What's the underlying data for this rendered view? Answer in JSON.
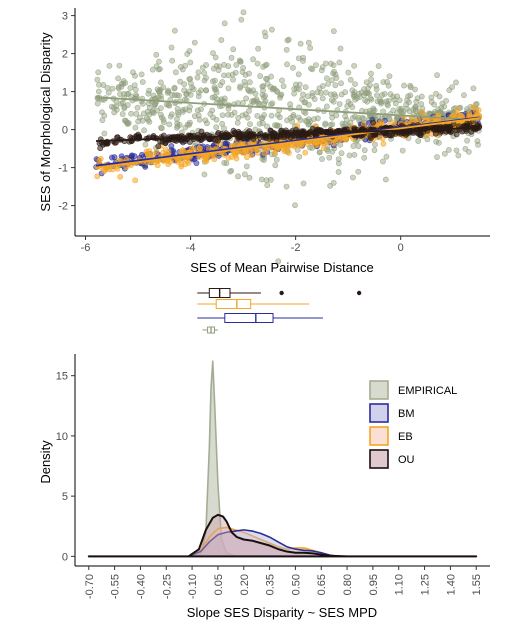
{
  "chart_data": [
    {
      "type": "scatter",
      "xlabel": "SES of Mean Pairwise Distance",
      "ylabel": "SES of Morphological Disparity",
      "xlim": [
        -6.2,
        1.7
      ],
      "ylim": [
        -2.8,
        3.2
      ],
      "xticks": [
        "-6",
        "-4",
        "-2",
        "0"
      ],
      "xtick_values": [
        -6,
        -4,
        -2,
        0
      ],
      "yticks": [
        "-2",
        "-1",
        "0",
        "1",
        "2",
        "3"
      ],
      "ytick_values": [
        -2,
        -1,
        0,
        1,
        2,
        3
      ],
      "grid": false,
      "series": [
        {
          "key": "EMPIRICAL",
          "color": "#8f9e7a",
          "x_range": [
            -5.8,
            1.5
          ],
          "trend": [
            [
              -5.8,
              0.85
            ],
            [
              1.5,
              0.25
            ]
          ],
          "point_spread": 0.65,
          "point_count": 900
        },
        {
          "key": "BM",
          "color": "#2b2e9a",
          "x_range": [
            -5.8,
            1.5
          ],
          "trend": [
            [
              -5.8,
              -0.95
            ],
            [
              1.5,
              0.32
            ]
          ],
          "point_spread": 0.1,
          "point_count": 450
        },
        {
          "key": "EB",
          "color": "#f5a623",
          "x_range": [
            -5.8,
            1.5
          ],
          "trend": [
            [
              -5.8,
              -1.0
            ],
            [
              1.5,
              0.3
            ]
          ],
          "point_spread": 0.13,
          "point_count": 500
        },
        {
          "key": "OU",
          "color": "#2a1a14",
          "x_range": [
            -5.8,
            1.5
          ],
          "trend": [
            [
              -5.8,
              -0.3
            ],
            [
              1.5,
              0.05
            ]
          ],
          "point_spread": 0.06,
          "point_count": 500
        }
      ]
    },
    {
      "type": "boxplot",
      "orientation": "horizontal",
      "note_shares_x_with": "density",
      "boxes": [
        {
          "key": "OU",
          "color": "#2a1a14",
          "whisker_low": -0.07,
          "q1": 0.0,
          "median": 0.06,
          "q3": 0.12,
          "whisker_high": 0.3,
          "outliers": [
            0.42,
            0.87
          ]
        },
        {
          "key": "EB",
          "color": "#f5a623",
          "whisker_low": -0.07,
          "q1": 0.04,
          "median": 0.16,
          "q3": 0.24,
          "whisker_high": 0.58,
          "outliers": []
        },
        {
          "key": "BM",
          "color": "#2b2e9a",
          "whisker_low": -0.07,
          "q1": 0.09,
          "median": 0.27,
          "q3": 0.37,
          "whisker_high": 0.66,
          "outliers": []
        },
        {
          "key": "EMPIRICAL",
          "color": "#8f9e7a",
          "whisker_low": -0.04,
          "q1": -0.01,
          "median": 0.01,
          "q3": 0.03,
          "whisker_high": 0.05,
          "outliers": []
        }
      ]
    },
    {
      "type": "area",
      "xlabel": "Slope SES Disparity ~ SES MPD",
      "ylabel": "Density",
      "xlim": [
        -0.78,
        1.63
      ],
      "ylim": [
        -0.8,
        16.8
      ],
      "xticks": [
        "-0.70",
        "-0.55",
        "-0.40",
        "-0.25",
        "-0.10",
        "0.05",
        "0.20",
        "0.35",
        "0.50",
        "0.65",
        "0.80",
        "0.95",
        "1.10",
        "1.25",
        "1.40",
        "1.55"
      ],
      "xtick_values": [
        -0.7,
        -0.55,
        -0.4,
        -0.25,
        -0.1,
        0.05,
        0.2,
        0.35,
        0.5,
        0.65,
        0.8,
        0.95,
        1.1,
        1.25,
        1.4,
        1.55
      ],
      "yticks": [
        "0",
        "5",
        "10",
        "15"
      ],
      "ytick_values": [
        0,
        5,
        10,
        15
      ],
      "legend_position": "top-right",
      "legend": [
        "EMPIRICAL",
        "BM",
        "EB",
        "OU"
      ],
      "series": [
        {
          "key": "EMPIRICAL",
          "name": "EMPIRICAL",
          "stroke": "#a3ad93",
          "fill": "#c9cdbd",
          "x": [
            -0.7,
            -0.1,
            -0.05,
            -0.02,
            0.0,
            0.01,
            0.02,
            0.03,
            0.05,
            0.07,
            0.1,
            0.15,
            1.55
          ],
          "y": [
            0,
            0,
            0.2,
            2.0,
            9.0,
            14.0,
            16.2,
            13.0,
            6.0,
            1.5,
            0.3,
            0,
            0
          ]
        },
        {
          "key": "BM",
          "name": "BM",
          "stroke": "#2b2e9a",
          "fill": "#b3b3e0",
          "x": [
            -0.7,
            -0.12,
            -0.05,
            0.0,
            0.05,
            0.1,
            0.15,
            0.2,
            0.25,
            0.3,
            0.35,
            0.4,
            0.45,
            0.5,
            0.55,
            0.6,
            0.65,
            0.7,
            0.75,
            1.55
          ],
          "y": [
            0,
            0,
            0.4,
            1.2,
            1.8,
            2.0,
            2.1,
            2.2,
            2.1,
            1.9,
            1.6,
            1.2,
            0.8,
            0.6,
            0.5,
            0.45,
            0.3,
            0.1,
            0,
            0
          ]
        },
        {
          "key": "EB",
          "name": "EB",
          "stroke": "#f5a623",
          "fill": "#f6c9b8",
          "x": [
            -0.7,
            -0.12,
            -0.05,
            0.0,
            0.05,
            0.1,
            0.15,
            0.2,
            0.25,
            0.3,
            0.35,
            0.4,
            0.45,
            0.5,
            0.55,
            0.6,
            0.65,
            0.7,
            0.75,
            1.55
          ],
          "y": [
            0,
            0,
            0.5,
            1.6,
            2.3,
            2.4,
            2.2,
            2.0,
            1.7,
            1.4,
            1.1,
            0.8,
            0.6,
            0.7,
            0.7,
            0.5,
            0.3,
            0.1,
            0,
            0
          ]
        },
        {
          "key": "OU",
          "name": "OU",
          "stroke": "#1a1010",
          "fill": "#c9a3ae",
          "x": [
            -0.7,
            -0.12,
            -0.06,
            -0.02,
            0.02,
            0.05,
            0.08,
            0.1,
            0.13,
            0.16,
            0.2,
            0.25,
            0.3,
            0.35,
            0.4,
            0.45,
            0.5,
            0.55,
            0.6,
            0.65,
            0.7,
            0.8,
            1.55
          ],
          "y": [
            0,
            0,
            0.6,
            2.2,
            3.2,
            3.45,
            3.3,
            2.9,
            2.0,
            1.6,
            1.4,
            1.3,
            1.1,
            0.9,
            0.6,
            0.4,
            0.3,
            0.3,
            0.25,
            0.15,
            0.05,
            0,
            0
          ]
        }
      ]
    }
  ]
}
